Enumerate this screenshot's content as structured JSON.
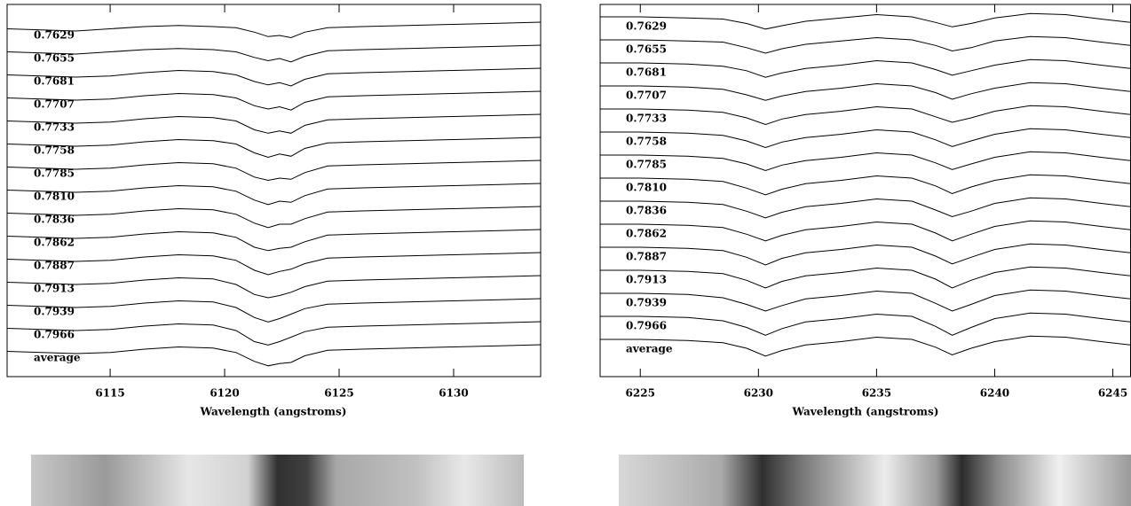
{
  "chart_data": [
    {
      "type": "line",
      "xlabel": "Wavelength (angstroms)",
      "xlim": [
        6110.5,
        6133.8
      ],
      "xticks": [
        6115,
        6120,
        6125,
        6130
      ],
      "color": "#000000",
      "x": [
        6110.5,
        6112,
        6113.5,
        6115,
        6116.5,
        6118,
        6119.5,
        6120.5,
        6121.3,
        6121.9,
        6122.4,
        6122.9,
        6123.5,
        6124.5,
        6126,
        6128,
        6130,
        6132,
        6133.8
      ],
      "series": [
        {
          "name": "0.7629",
          "values": [
            0.99,
            0.985,
            0.98,
            0.99,
            1.0,
            1.005,
            1.0,
            0.995,
            0.975,
            0.955,
            0.96,
            0.95,
            0.975,
            0.995,
            1.0,
            1.005,
            1.01,
            1.015,
            1.02
          ]
        },
        {
          "name": "0.7655",
          "values": [
            0.99,
            0.985,
            0.98,
            0.99,
            1.0,
            1.005,
            1.0,
            0.99,
            0.965,
            0.95,
            0.96,
            0.945,
            0.97,
            0.995,
            1.0,
            1.005,
            1.01,
            1.015,
            1.02
          ]
        },
        {
          "name": "0.7681",
          "values": [
            0.99,
            0.985,
            0.98,
            0.985,
            1.0,
            1.01,
            1.005,
            0.99,
            0.96,
            0.945,
            0.955,
            0.94,
            0.97,
            0.995,
            1.0,
            1.005,
            1.01,
            1.015,
            1.02
          ]
        },
        {
          "name": "0.7707",
          "values": [
            0.99,
            0.985,
            0.98,
            0.985,
            1.0,
            1.01,
            1.005,
            0.99,
            0.955,
            0.94,
            0.95,
            0.935,
            0.97,
            0.995,
            1.0,
            1.005,
            1.01,
            1.015,
            1.02
          ]
        },
        {
          "name": "0.7733",
          "values": [
            0.99,
            0.985,
            0.98,
            0.985,
            1.0,
            1.01,
            1.005,
            0.99,
            0.95,
            0.935,
            0.945,
            0.935,
            0.97,
            0.995,
            1.0,
            1.005,
            1.01,
            1.015,
            1.02
          ]
        },
        {
          "name": "0.7758",
          "values": [
            0.99,
            0.985,
            0.98,
            0.985,
            1.0,
            1.01,
            1.005,
            0.99,
            0.95,
            0.93,
            0.945,
            0.935,
            0.97,
            0.995,
            1.0,
            1.005,
            1.01,
            1.015,
            1.02
          ]
        },
        {
          "name": "0.7785",
          "values": [
            0.99,
            0.985,
            0.98,
            0.985,
            1.0,
            1.01,
            1.005,
            0.985,
            0.945,
            0.93,
            0.94,
            0.935,
            0.965,
            0.995,
            1.0,
            1.005,
            1.01,
            1.015,
            1.02
          ]
        },
        {
          "name": "0.7810",
          "values": [
            0.99,
            0.985,
            0.98,
            0.985,
            1.0,
            1.01,
            1.005,
            0.985,
            0.945,
            0.925,
            0.94,
            0.935,
            0.965,
            0.995,
            1.0,
            1.005,
            1.01,
            1.015,
            1.02
          ]
        },
        {
          "name": "0.7836",
          "values": [
            0.99,
            0.985,
            0.98,
            0.985,
            1.0,
            1.01,
            1.005,
            0.985,
            0.945,
            0.925,
            0.94,
            0.94,
            0.965,
            0.995,
            1.0,
            1.005,
            1.01,
            1.015,
            1.02
          ]
        },
        {
          "name": "0.7862",
          "values": [
            0.99,
            0.985,
            0.98,
            0.985,
            1.0,
            1.01,
            1.005,
            0.985,
            0.94,
            0.925,
            0.935,
            0.94,
            0.965,
            0.995,
            1.0,
            1.005,
            1.01,
            1.015,
            1.02
          ]
        },
        {
          "name": "0.7887",
          "values": [
            0.99,
            0.985,
            0.98,
            0.985,
            1.0,
            1.01,
            1.005,
            0.985,
            0.94,
            0.92,
            0.935,
            0.945,
            0.97,
            0.995,
            1.0,
            1.005,
            1.01,
            1.015,
            1.02
          ]
        },
        {
          "name": "0.7913",
          "values": [
            0.99,
            0.985,
            0.98,
            0.985,
            1.0,
            1.01,
            1.005,
            0.98,
            0.935,
            0.92,
            0.93,
            0.945,
            0.97,
            0.995,
            1.0,
            1.005,
            1.01,
            1.015,
            1.02
          ]
        },
        {
          "name": "0.7939",
          "values": [
            0.99,
            0.985,
            0.98,
            0.985,
            1.0,
            1.01,
            1.005,
            0.98,
            0.935,
            0.915,
            0.93,
            0.95,
            0.975,
            0.995,
            1.0,
            1.005,
            1.01,
            1.015,
            1.02
          ]
        },
        {
          "name": "0.7966",
          "values": [
            0.99,
            0.985,
            0.98,
            0.985,
            1.0,
            1.01,
            1.005,
            0.98,
            0.93,
            0.915,
            0.93,
            0.95,
            0.975,
            0.995,
            1.0,
            1.005,
            1.01,
            1.015,
            1.02
          ]
        },
        {
          "name": "average",
          "values": [
            0.99,
            0.985,
            0.98,
            0.985,
            1.0,
            1.01,
            1.005,
            0.985,
            0.945,
            0.925,
            0.935,
            0.94,
            0.97,
            0.995,
            1.0,
            1.005,
            1.01,
            1.015,
            1.02
          ]
        }
      ]
    },
    {
      "type": "line",
      "xlabel": "Wavelength (angstroms)",
      "xlim": [
        6223.3,
        6245.75
      ],
      "xticks": [
        6225,
        6230,
        6235,
        6240,
        6245
      ],
      "color": "#000000",
      "x": [
        6223.3,
        6225,
        6227,
        6228.5,
        6229.5,
        6230.3,
        6231,
        6232,
        6233.5,
        6235,
        6236.5,
        6237.5,
        6238.2,
        6239,
        6240,
        6241.5,
        6243,
        6244.5,
        6245.75
      ],
      "series": [
        {
          "name": "0.7629",
          "values": [
            1.0,
            1.0,
            0.995,
            0.99,
            0.97,
            0.945,
            0.96,
            0.98,
            0.995,
            1.01,
            1.0,
            0.975,
            0.955,
            0.97,
            0.995,
            1.015,
            1.01,
            0.99,
            0.975
          ]
        },
        {
          "name": "0.7655",
          "values": [
            1.0,
            1.0,
            0.995,
            0.99,
            0.965,
            0.94,
            0.96,
            0.98,
            0.995,
            1.01,
            1.0,
            0.975,
            0.95,
            0.965,
            0.995,
            1.015,
            1.01,
            0.99,
            0.975
          ]
        },
        {
          "name": "0.7681",
          "values": [
            1.0,
            1.0,
            0.995,
            0.985,
            0.965,
            0.935,
            0.955,
            0.975,
            0.99,
            1.01,
            1.0,
            0.97,
            0.945,
            0.965,
            0.99,
            1.015,
            1.01,
            0.99,
            0.975
          ]
        },
        {
          "name": "0.7707",
          "values": [
            1.0,
            1.0,
            0.995,
            0.985,
            0.96,
            0.935,
            0.955,
            0.975,
            0.99,
            1.01,
            1.0,
            0.97,
            0.94,
            0.965,
            0.99,
            1.015,
            1.01,
            0.99,
            0.975
          ]
        },
        {
          "name": "0.7733",
          "values": [
            1.0,
            1.0,
            0.995,
            0.985,
            0.96,
            0.93,
            0.955,
            0.975,
            0.99,
            1.01,
            1.0,
            0.965,
            0.94,
            0.96,
            0.99,
            1.015,
            1.01,
            0.99,
            0.975
          ]
        },
        {
          "name": "0.7758",
          "values": [
            1.0,
            1.0,
            0.995,
            0.985,
            0.96,
            0.93,
            0.955,
            0.975,
            0.99,
            1.01,
            1.0,
            0.965,
            0.935,
            0.96,
            0.99,
            1.015,
            1.01,
            0.99,
            0.975
          ]
        },
        {
          "name": "0.7785",
          "values": [
            1.0,
            1.0,
            0.995,
            0.985,
            0.96,
            0.93,
            0.955,
            0.975,
            0.99,
            1.01,
            1.0,
            0.965,
            0.935,
            0.96,
            0.99,
            1.015,
            1.01,
            0.99,
            0.975
          ]
        },
        {
          "name": "0.7810",
          "values": [
            1.0,
            1.0,
            0.995,
            0.985,
            0.955,
            0.925,
            0.95,
            0.975,
            0.99,
            1.01,
            1.0,
            0.965,
            0.93,
            0.96,
            0.99,
            1.015,
            1.01,
            0.99,
            0.975
          ]
        },
        {
          "name": "0.7836",
          "values": [
            1.0,
            1.0,
            0.995,
            0.985,
            0.955,
            0.925,
            0.95,
            0.975,
            0.99,
            1.01,
            1.0,
            0.96,
            0.93,
            0.955,
            0.99,
            1.015,
            1.01,
            0.99,
            0.975
          ]
        },
        {
          "name": "0.7862",
          "values": [
            1.0,
            1.0,
            0.995,
            0.985,
            0.955,
            0.925,
            0.95,
            0.975,
            0.99,
            1.01,
            1.0,
            0.96,
            0.925,
            0.955,
            0.99,
            1.015,
            1.01,
            0.99,
            0.975
          ]
        },
        {
          "name": "0.7887",
          "values": [
            1.0,
            1.0,
            0.995,
            0.985,
            0.955,
            0.92,
            0.95,
            0.975,
            0.99,
            1.01,
            1.0,
            0.96,
            0.925,
            0.955,
            0.99,
            1.015,
            1.01,
            0.99,
            0.975
          ]
        },
        {
          "name": "0.7913",
          "values": [
            1.0,
            1.0,
            0.995,
            0.985,
            0.955,
            0.92,
            0.95,
            0.975,
            0.99,
            1.01,
            1.0,
            0.96,
            0.92,
            0.955,
            0.99,
            1.015,
            1.01,
            0.99,
            0.975
          ]
        },
        {
          "name": "0.7939",
          "values": [
            1.0,
            1.0,
            0.995,
            0.98,
            0.95,
            0.92,
            0.945,
            0.975,
            0.99,
            1.01,
            1.0,
            0.955,
            0.92,
            0.95,
            0.99,
            1.015,
            1.01,
            0.99,
            0.975
          ]
        },
        {
          "name": "0.7966",
          "values": [
            1.0,
            1.0,
            0.995,
            0.98,
            0.95,
            0.915,
            0.945,
            0.975,
            0.99,
            1.01,
            1.0,
            0.955,
            0.915,
            0.95,
            0.99,
            1.015,
            1.01,
            0.99,
            0.975
          ]
        },
        {
          "name": "average",
          "values": [
            1.0,
            1.0,
            0.995,
            0.985,
            0.96,
            0.925,
            0.95,
            0.975,
            0.99,
            1.01,
            1.0,
            0.965,
            0.93,
            0.96,
            0.99,
            1.015,
            1.01,
            0.99,
            0.975
          ]
        }
      ]
    }
  ]
}
